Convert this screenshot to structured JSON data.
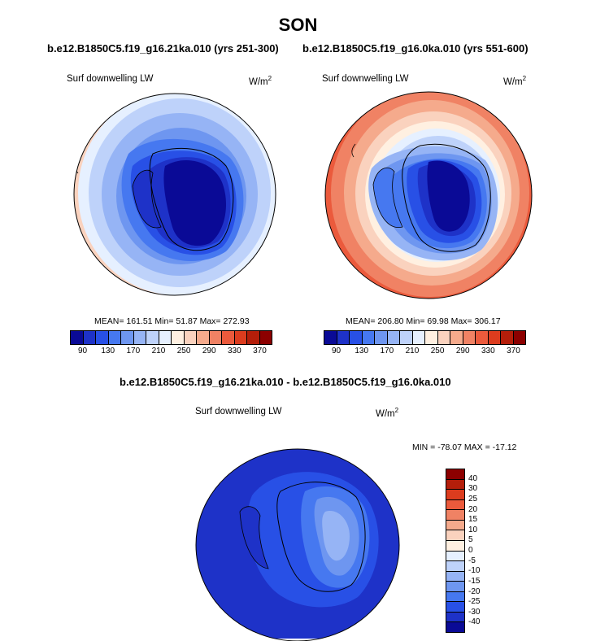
{
  "figure": {
    "title": "SON",
    "left_subtitle": "b.e12.B1850C5.f19_g16.21ka.010 (yrs 251-300)",
    "right_subtitle": "b.e12.B1850C5.f19_g16.0ka.010 (yrs 551-600)",
    "diff_subtitle": "b.e12.B1850C5.f19_g16.21ka.010 - b.e12.B1850C5.f19_g16.0ka.010"
  },
  "panels": {
    "left": {
      "variable": "Surf downwelling LW",
      "units": "W/m",
      "units_exp": "2",
      "stats": "MEAN= 161.51  Min=  51.87  Max= 272.93"
    },
    "right": {
      "variable": "Surf downwelling LW",
      "units": "W/m",
      "units_exp": "2",
      "stats": "MEAN= 206.80  Min=  69.98  Max= 306.17"
    },
    "diff": {
      "variable": "Surf downwelling LW",
      "units": "W/m",
      "units_exp": "2",
      "stats": "MIN = -78.07 MAX = -17.12"
    }
  },
  "colorbar_abs": {
    "colors": [
      "#0a0a96",
      "#1e32c8",
      "#2850e6",
      "#4678f0",
      "#6e96f0",
      "#96b4f5",
      "#bed2fa",
      "#e6f0ff",
      "#fff0e1",
      "#fad2be",
      "#f5aa8c",
      "#f08264",
      "#eb5a3c",
      "#dc3c1e",
      "#b41e0a",
      "#8c0000"
    ],
    "labels": [
      "90",
      "130",
      "170",
      "210",
      "250",
      "290",
      "330",
      "370"
    ]
  },
  "colorbar_diff": {
    "colors": [
      "#8c0000",
      "#b41e0a",
      "#dc3c1e",
      "#eb5a3c",
      "#f08264",
      "#f5aa8c",
      "#fad2be",
      "#fff0e1",
      "#e6f0ff",
      "#bed2fa",
      "#96b4f5",
      "#6e96f0",
      "#4678f0",
      "#2850e6",
      "#1e32c8",
      "#0a0a96"
    ],
    "labels": [
      "40",
      "30",
      "25",
      "20",
      "15",
      "10",
      "5",
      "0",
      "-5",
      "-10",
      "-15",
      "-20",
      "-25",
      "-30",
      "-40"
    ]
  }
}
